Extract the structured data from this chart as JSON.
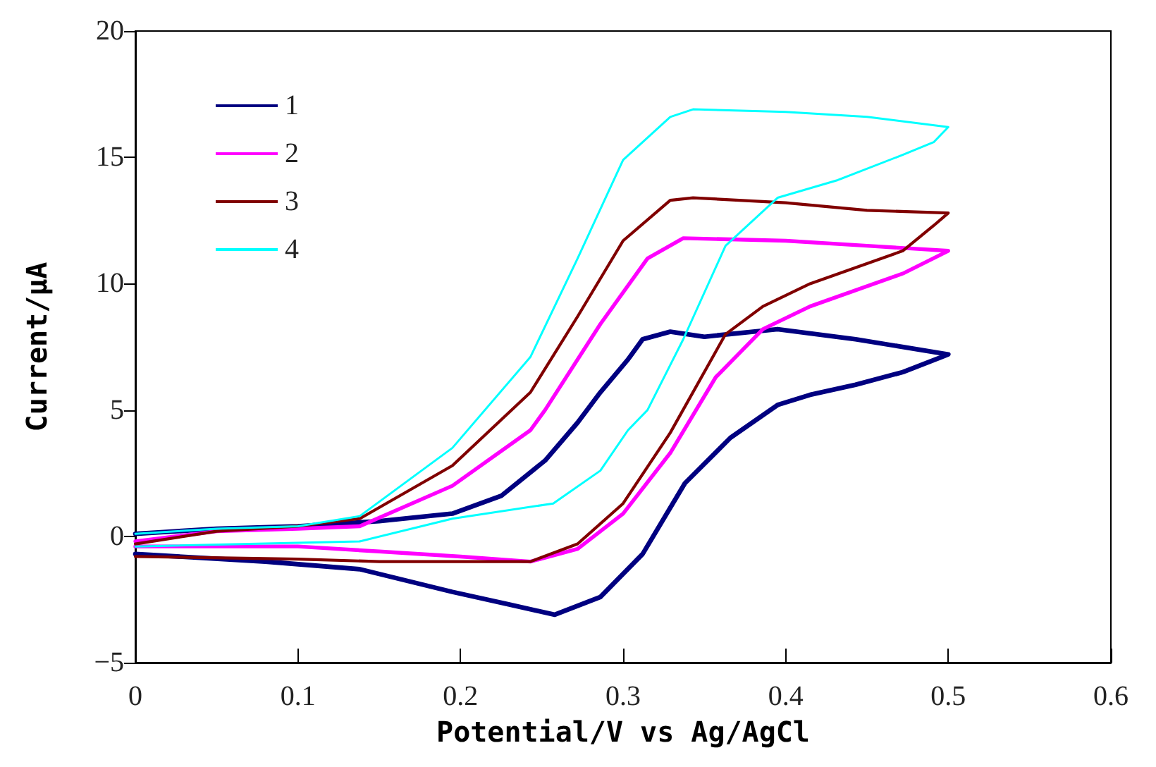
{
  "chart_data": {
    "type": "line",
    "xlabel": "Potential/V vs Ag/AgCl",
    "ylabel": "Current/μA",
    "xlim": [
      0,
      0.6
    ],
    "xticks": [
      0,
      0.1,
      0.2,
      0.3,
      0.4,
      0.5,
      0.6
    ],
    "ylim": [
      -5,
      20
    ],
    "yticks": [
      -5,
      0,
      5,
      10,
      15,
      20
    ],
    "grid": false,
    "legend": "top left",
    "marker": "none",
    "line_style": "solid",
    "series": [
      {
        "name": "1",
        "color": "#000080",
        "x": [
          0,
          0.05,
          0.1,
          0.15,
          0.195,
          0.225,
          0.252,
          0.272,
          0.286,
          0.303,
          0.312,
          0.329,
          0.35,
          0.395,
          0.443,
          0.5,
          0.5,
          0.472,
          0.443,
          0.415,
          0.395,
          0.366,
          0.338,
          0.312,
          0.286,
          0.258,
          0.23,
          0.195,
          0.138,
          0.08,
          0
        ],
        "values": [
          0.1,
          0.3,
          0.4,
          0.6,
          0.9,
          1.6,
          3.0,
          4.5,
          5.7,
          7.0,
          7.8,
          8.1,
          7.9,
          8.2,
          7.8,
          7.2,
          7.2,
          6.5,
          6.0,
          5.6,
          5.2,
          3.9,
          2.1,
          -0.7,
          -2.4,
          -3.1,
          -2.7,
          -2.2,
          -1.3,
          -1.0,
          -0.7
        ]
      },
      {
        "name": "2",
        "color": "#ff00ff",
        "x": [
          0,
          0.05,
          0.1,
          0.138,
          0.195,
          0.243,
          0.252,
          0.286,
          0.315,
          0.337,
          0.4,
          0.45,
          0.5,
          0.5,
          0.472,
          0.415,
          0.386,
          0.357,
          0.329,
          0.3,
          0.272,
          0.243,
          0.2,
          0.15,
          0.1,
          0
        ],
        "values": [
          -0.2,
          0.2,
          0.3,
          0.4,
          2.0,
          4.2,
          5.0,
          8.4,
          11.0,
          11.8,
          11.7,
          11.5,
          11.3,
          11.3,
          10.4,
          9.1,
          8.2,
          6.3,
          3.3,
          0.9,
          -0.5,
          -1.0,
          -0.8,
          -0.6,
          -0.4,
          -0.4
        ]
      },
      {
        "name": "3",
        "color": "#800000",
        "x": [
          0,
          0.05,
          0.1,
          0.138,
          0.195,
          0.243,
          0.272,
          0.3,
          0.329,
          0.343,
          0.4,
          0.45,
          0.5,
          0.491,
          0.472,
          0.415,
          0.386,
          0.363,
          0.329,
          0.3,
          0.272,
          0.243,
          0.2,
          0.15,
          0.1,
          0
        ],
        "values": [
          -0.3,
          0.2,
          0.4,
          0.7,
          2.8,
          5.7,
          8.7,
          11.7,
          13.3,
          13.4,
          13.2,
          12.9,
          12.8,
          12.3,
          11.3,
          10.0,
          9.1,
          8.0,
          4.1,
          1.3,
          -0.3,
          -1.0,
          -1.0,
          -1.0,
          -0.9,
          -0.8
        ]
      },
      {
        "name": "4",
        "color": "#00ffff",
        "x": [
          0,
          0.05,
          0.1,
          0.138,
          0.195,
          0.243,
          0.272,
          0.3,
          0.329,
          0.343,
          0.4,
          0.45,
          0.5,
          0.491,
          0.472,
          0.432,
          0.395,
          0.363,
          0.337,
          0.315,
          0.303,
          0.286,
          0.257,
          0.195,
          0.138,
          0
        ],
        "values": [
          0.1,
          0.3,
          0.4,
          0.8,
          3.5,
          7.1,
          11.0,
          14.9,
          16.6,
          16.9,
          16.8,
          16.6,
          16.2,
          15.6,
          15.1,
          14.1,
          13.4,
          11.5,
          7.8,
          5.0,
          4.2,
          2.6,
          1.3,
          0.7,
          -0.2,
          -0.4
        ]
      }
    ]
  }
}
